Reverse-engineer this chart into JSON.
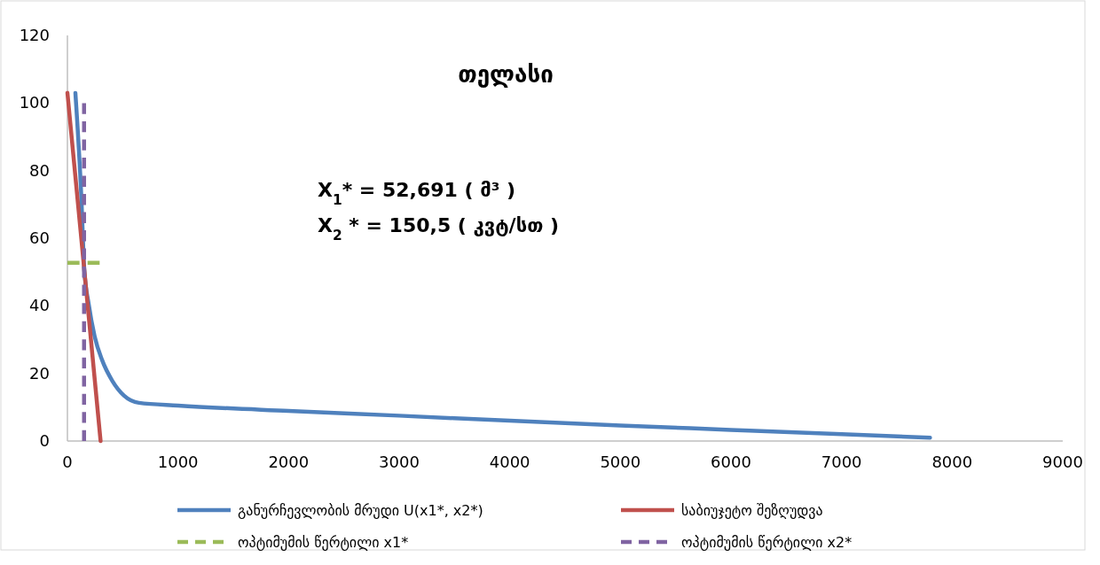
{
  "chart_data": {
    "type": "line",
    "title": "თელასი",
    "xlim": [
      0,
      9000
    ],
    "xticks": [
      0,
      1000,
      2000,
      3000,
      4000,
      5000,
      6000,
      7000,
      8000,
      9000
    ],
    "ylim": [
      0,
      120
    ],
    "yticks": [
      0,
      20,
      40,
      60,
      80,
      100,
      120
    ],
    "grid": false,
    "legend": "bottom",
    "marker": "none",
    "annotations": [
      "X$_{1}$* = 52,691 ( მ³ )",
      "X$_{2}$ * = 150,5 ( კვტ/სთ )"
    ],
    "series": [
      {
        "name": "განურჩევლობის მრუდი U(x1*, x2*)",
        "color": "#4f81bd",
        "line_style": "solid",
        "x": [
          72,
          126,
          152,
          192,
          246,
          313,
          406,
          513,
          647,
          1000,
          2000,
          3000,
          4000,
          5000,
          6000,
          7000,
          7800
        ],
        "values": [
          103,
          72,
          51,
          40.6,
          31,
          24,
          17.8,
          13.4,
          11.3,
          10.5,
          8.9,
          7.5,
          6,
          4.6,
          3.3,
          2,
          1
        ]
      },
      {
        "name": "საბიუჯეტო შეზღუდვა",
        "color": "#c0504d",
        "line_style": "solid",
        "x": [
          0,
          300
        ],
        "values": [
          103,
          0
        ]
      },
      {
        "name": "ოპტიმუმის წერტილი x1*",
        "color": "#9bbb59",
        "line_style": "dashed",
        "x": [
          0,
          300
        ],
        "values": [
          52.7,
          52.7
        ]
      },
      {
        "name": "ოპტიმუმის წერტილი x2*",
        "color": "#8064a2",
        "line_style": "dashed",
        "x": [
          150.5,
          150.5
        ],
        "values": [
          0,
          100
        ]
      }
    ]
  }
}
